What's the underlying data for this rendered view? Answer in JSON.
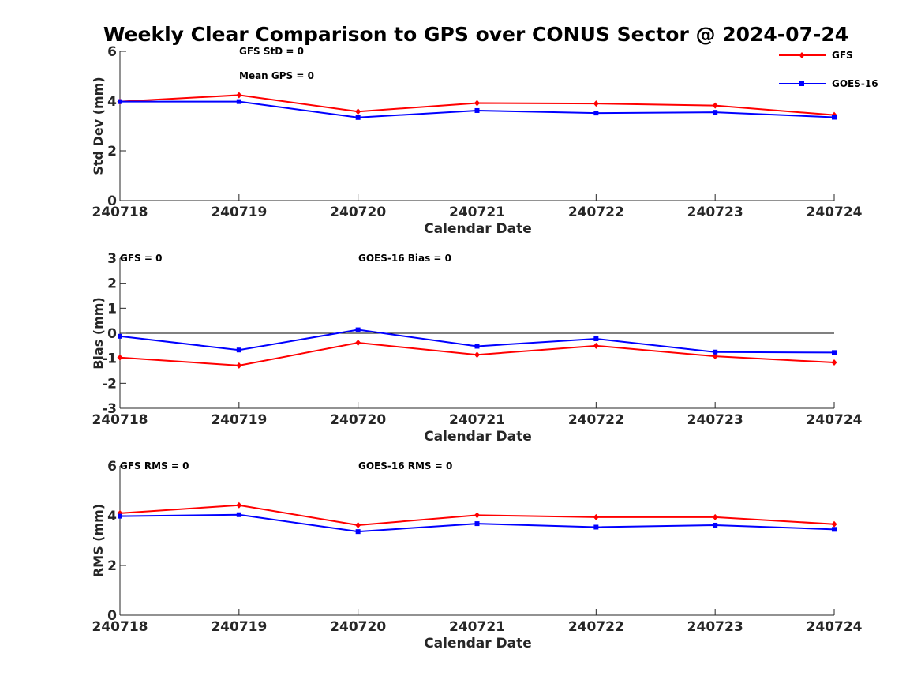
{
  "figure": {
    "title": "Weekly Clear Comparison to GPS over CONUS Sector @ 2024-07-24"
  },
  "colors": {
    "gfs": "#ff0000",
    "goes": "#0000ff",
    "axis": "#262626",
    "zero_line": "#000000"
  },
  "legend": {
    "placement": "top-right",
    "entries": [
      {
        "label": "GFS",
        "marker": "diamond",
        "color": "#ff0000"
      },
      {
        "label": "GOES-16",
        "marker": "square",
        "color": "#0000ff"
      }
    ]
  },
  "chart_data": [
    {
      "type": "line",
      "xlabel": "Calendar Date",
      "ylabel": "Std Dev (mm)",
      "categories": [
        "240718",
        "240719",
        "240720",
        "240721",
        "240722",
        "240723",
        "240724"
      ],
      "ylim": [
        0,
        6
      ],
      "yticks": [
        "0",
        "2",
        "4",
        "6"
      ],
      "zero_line": false,
      "annotations": [
        "GFS StD = 0",
        "Mean GPS = 0"
      ],
      "series": [
        {
          "name": "GFS",
          "values": [
            3.98,
            4.24,
            3.58,
            3.92,
            3.9,
            3.82,
            3.44
          ]
        },
        {
          "name": "GOES-16",
          "values": [
            3.98,
            3.98,
            3.34,
            3.62,
            3.52,
            3.55,
            3.35
          ]
        }
      ]
    },
    {
      "type": "line",
      "xlabel": "Calendar Date",
      "ylabel": "Bias (mm)",
      "categories": [
        "240718",
        "240719",
        "240720",
        "240721",
        "240722",
        "240723",
        "240724"
      ],
      "ylim": [
        -3,
        3
      ],
      "yticks": [
        "-3",
        "-2",
        "-1",
        "0",
        "1",
        "2",
        "3"
      ],
      "zero_line": true,
      "annotations": [
        "GFS = 0",
        "GOES-16 Bias  = 0"
      ],
      "series": [
        {
          "name": "GFS",
          "values": [
            -0.97,
            -1.29,
            -0.38,
            -0.86,
            -0.5,
            -0.92,
            -1.17
          ]
        },
        {
          "name": "GOES-16",
          "values": [
            -0.12,
            -0.67,
            0.14,
            -0.52,
            -0.22,
            -0.75,
            -0.77
          ]
        }
      ]
    },
    {
      "type": "line",
      "xlabel": "Calendar Date",
      "ylabel": "RMS (mm)",
      "categories": [
        "240718",
        "240719",
        "240720",
        "240721",
        "240722",
        "240723",
        "240724"
      ],
      "ylim": [
        0,
        6
      ],
      "yticks": [
        "0",
        "2",
        "4",
        "6"
      ],
      "zero_line": false,
      "annotations": [
        "GFS RMS = 0",
        "GOES-16 RMS = 0"
      ],
      "series": [
        {
          "name": "GFS",
          "values": [
            4.1,
            4.42,
            3.62,
            4.02,
            3.94,
            3.94,
            3.66
          ]
        },
        {
          "name": "GOES-16",
          "values": [
            3.98,
            4.04,
            3.36,
            3.68,
            3.54,
            3.62,
            3.45
          ]
        }
      ]
    }
  ]
}
